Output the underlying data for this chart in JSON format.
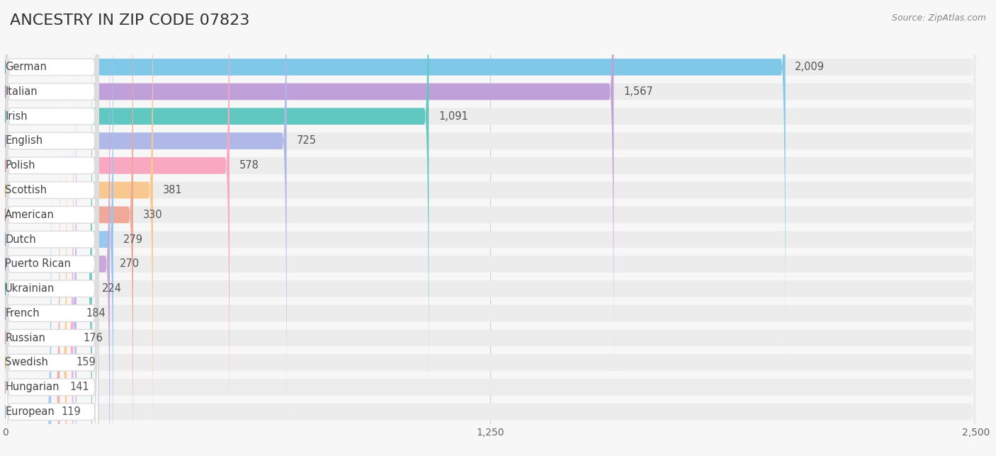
{
  "title": "ANCESTRY IN ZIP CODE 07823",
  "source": "Source: ZipAtlas.com",
  "categories": [
    "German",
    "Italian",
    "Irish",
    "English",
    "Polish",
    "Scottish",
    "American",
    "Dutch",
    "Puerto Rican",
    "Ukrainian",
    "French",
    "Russian",
    "Swedish",
    "Hungarian",
    "European"
  ],
  "values": [
    2009,
    1567,
    1091,
    725,
    578,
    381,
    330,
    279,
    270,
    224,
    184,
    176,
    159,
    141,
    119
  ],
  "bar_colors": [
    "#80c8e8",
    "#c0a0d8",
    "#60c8c0",
    "#b0b8e8",
    "#f8a8c0",
    "#f8c890",
    "#f0a898",
    "#98c8f0",
    "#c8a8d8",
    "#70c8c0",
    "#b8b8f0",
    "#f8b0c8",
    "#f8cc98",
    "#f0b0a8",
    "#a8c8f0"
  ],
  "dot_colors": [
    "#50a8d0",
    "#9070b8",
    "#30b0a8",
    "#8888c8",
    "#e87098",
    "#e8a040",
    "#d87868",
    "#6098d8",
    "#9878c0",
    "#38b0a8",
    "#9090d0",
    "#e880a0",
    "#e8a850",
    "#d88878",
    "#78a8d8"
  ],
  "xlim": [
    0,
    2500
  ],
  "xticks": [
    0,
    1250,
    2500
  ],
  "background_color": "#f7f7f7",
  "bar_bg_color": "#ececec",
  "label_bg_color": "#ffffff",
  "title_fontsize": 16,
  "label_fontsize": 10.5,
  "value_fontsize": 10.5,
  "tick_fontsize": 10
}
